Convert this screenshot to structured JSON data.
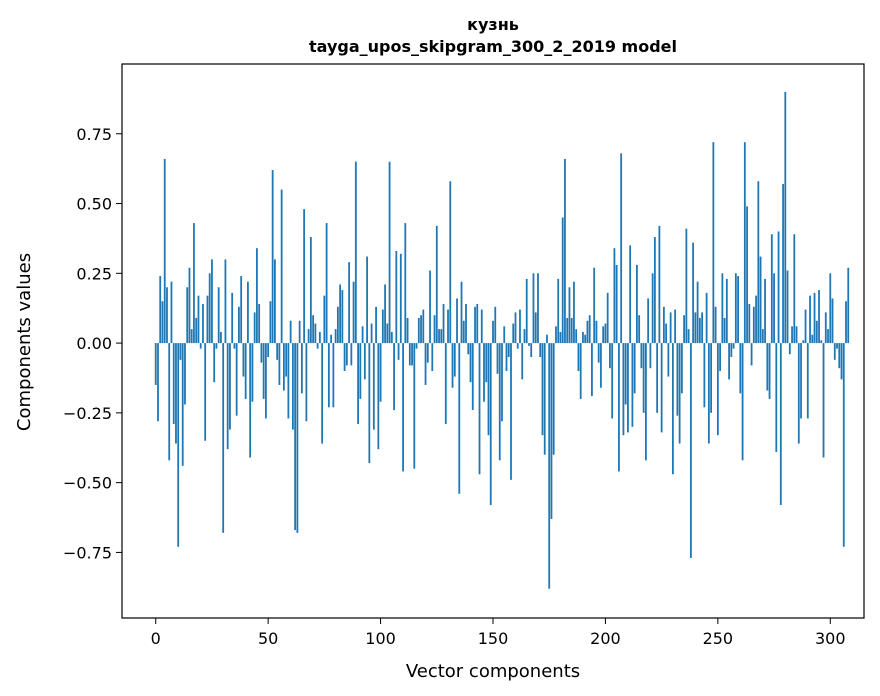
{
  "chart_data": {
    "type": "bar",
    "title": "кузнь",
    "subtitle": "tayga_upos_skipgram_300_2_2019 model",
    "xlabel": "Vector components",
    "ylabel": "Components values",
    "xlim": [
      -15,
      315
    ],
    "ylim": [
      -0.985,
      1.0
    ],
    "xticks": [
      0,
      50,
      100,
      150,
      200,
      250,
      300
    ],
    "yticks": [
      -0.75,
      -0.5,
      -0.25,
      0.0,
      0.25,
      0.5,
      0.75
    ],
    "xtick_labels": [
      "0",
      "50",
      "100",
      "150",
      "200",
      "250",
      "300"
    ],
    "ytick_labels": [
      "−0.75",
      "−0.50",
      "−0.25",
      "0.00",
      "0.25",
      "0.50",
      "0.75"
    ],
    "bar_color": "#1f77b4",
    "grid": false,
    "legend": "none",
    "values": [
      -0.15,
      -0.28,
      0.24,
      0.15,
      0.66,
      0.2,
      -0.42,
      0.22,
      -0.29,
      -0.36,
      -0.73,
      -0.06,
      -0.44,
      -0.22,
      0.2,
      0.27,
      0.05,
      0.43,
      0.09,
      0.17,
      -0.02,
      0.14,
      -0.35,
      0.17,
      0.25,
      0.3,
      -0.14,
      -0.02,
      0.2,
      0.04,
      -0.68,
      0.3,
      -0.38,
      -0.31,
      0.18,
      -0.02,
      -0.26,
      0.13,
      0.24,
      -0.12,
      -0.2,
      0.22,
      -0.41,
      -0.21,
      0.11,
      0.34,
      0.14,
      -0.07,
      -0.2,
      -0.27,
      -0.05,
      0.15,
      0.62,
      0.3,
      -0.06,
      -0.15,
      0.55,
      -0.17,
      -0.12,
      -0.27,
      0.08,
      -0.31,
      -0.67,
      -0.68,
      0.08,
      -0.18,
      0.48,
      -0.28,
      0.05,
      0.38,
      0.1,
      0.07,
      -0.02,
      0.04,
      -0.36,
      0.17,
      0.43,
      -0.23,
      0.03,
      -0.23,
      0.05,
      0.13,
      0.21,
      0.19,
      -0.1,
      -0.08,
      0.29,
      -0.08,
      0.22,
      0.65,
      -0.29,
      -0.2,
      0.06,
      -0.13,
      0.31,
      -0.43,
      0.07,
      -0.31,
      0.13,
      -0.38,
      -0.21,
      0.12,
      0.21,
      0.07,
      0.65,
      0.04,
      -0.24,
      0.33,
      -0.06,
      0.32,
      -0.46,
      0.43,
      0.09,
      -0.08,
      -0.08,
      -0.45,
      -0.02,
      0.09,
      0.1,
      0.12,
      -0.15,
      -0.07,
      0.26,
      -0.1,
      0.1,
      0.42,
      0.05,
      0.05,
      0.14,
      -0.29,
      0.12,
      0.58,
      -0.16,
      -0.12,
      0.16,
      -0.54,
      0.22,
      0.08,
      0.14,
      -0.04,
      -0.14,
      -0.24,
      0.13,
      0.14,
      -0.47,
      0.12,
      -0.21,
      -0.14,
      -0.33,
      -0.58,
      0.08,
      0.13,
      -0.11,
      -0.42,
      -0.28,
      0.06,
      -0.1,
      -0.05,
      -0.49,
      0.07,
      0.11,
      -0.02,
      0.12,
      -0.13,
      0.05,
      0.23,
      -0.01,
      -0.05,
      0.25,
      0.11,
      0.25,
      -0.05,
      -0.33,
      -0.4,
      0.03,
      -0.88,
      -0.63,
      -0.4,
      0.06,
      0.23,
      0.04,
      0.45,
      0.66,
      0.09,
      0.2,
      0.09,
      0.22,
      0.05,
      -0.1,
      -0.2,
      0.04,
      0.03,
      0.08,
      0.1,
      -0.19,
      0.27,
      0.08,
      -0.07,
      -0.16,
      0.06,
      0.07,
      0.18,
      -0.09,
      -0.27,
      0.34,
      0.28,
      -0.46,
      0.68,
      -0.33,
      -0.22,
      -0.32,
      0.35,
      -0.3,
      -0.18,
      0.28,
      0.1,
      -0.09,
      -0.25,
      -0.42,
      0.16,
      -0.09,
      0.25,
      0.38,
      -0.25,
      0.42,
      -0.32,
      0.13,
      0.07,
      -0.12,
      0.11,
      -0.47,
      0.12,
      -0.26,
      -0.36,
      -0.18,
      0.1,
      0.41,
      0.05,
      -0.77,
      0.36,
      0.11,
      0.22,
      0.09,
      0.11,
      -0.23,
      0.18,
      -0.36,
      -0.25,
      0.72,
      0.13,
      -0.33,
      -0.1,
      0.25,
      0.09,
      0.23,
      -0.13,
      -0.05,
      -0.02,
      0.25,
      0.24,
      -0.18,
      -0.42,
      0.72,
      0.49,
      0.14,
      -0.08,
      0.13,
      0.17,
      0.58,
      0.31,
      0.05,
      0.23,
      -0.17,
      -0.2,
      0.39,
      0.25,
      -0.39,
      0.4,
      -0.58,
      0.57,
      0.9,
      0.26,
      -0.04,
      0.06,
      0.39,
      0.06,
      -0.36,
      -0.27,
      0.01,
      0.12,
      -0.27,
      0.17,
      0.03,
      0.18,
      0.08,
      0.19,
      0.01,
      -0.41,
      0.11,
      0.05,
      0.25,
      0.16,
      -0.06,
      -0.02,
      -0.09,
      -0.13,
      -0.73,
      0.15,
      0.27
    ]
  }
}
